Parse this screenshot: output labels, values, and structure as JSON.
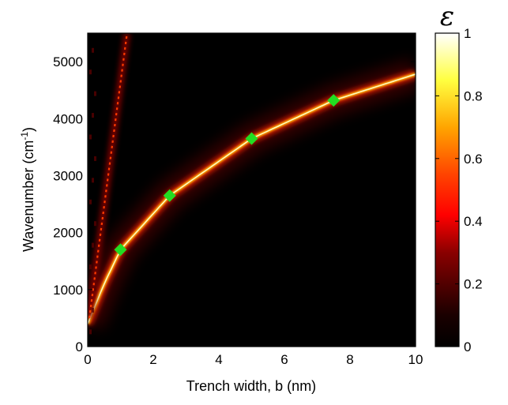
{
  "chart_data": {
    "type": "heatmap",
    "xlabel": "Trench width, b (nm)",
    "ylabel": "Wavenumber (cm",
    "ylabel_sup": "-1",
    "ylabel_tail": ")",
    "xlim": [
      0,
      10
    ],
    "ylim": [
      0,
      5500
    ],
    "x_ticks": [
      "0",
      "2",
      "4",
      "6",
      "8",
      "10"
    ],
    "y_ticks": [
      "0",
      "1000",
      "2000",
      "3000",
      "4000",
      "5000"
    ],
    "colorbar": {
      "title": "ε",
      "range": [
        0,
        1
      ],
      "ticks": [
        "0",
        "0.2",
        "0.4",
        "0.6",
        "0.8",
        "1"
      ],
      "colormap": "hot"
    },
    "main_resonance": {
      "description_points": [
        [
          0,
          400
        ],
        [
          0.5,
          1100
        ],
        [
          1,
          1700
        ],
        [
          2.5,
          2650
        ],
        [
          5,
          3650
        ],
        [
          7.5,
          4320
        ],
        [
          10,
          4780
        ]
      ]
    },
    "secondary_resonance": {
      "points": [
        [
          0.05,
          500
        ],
        [
          1.2,
          5500
        ]
      ]
    },
    "markers": {
      "color": "#22dd22",
      "shape": "diamond",
      "points": [
        {
          "x": 1.0,
          "y": 1700
        },
        {
          "x": 2.5,
          "y": 2650
        },
        {
          "x": 5.0,
          "y": 3650
        },
        {
          "x": 7.5,
          "y": 4320
        }
      ]
    },
    "background_color": "#000000"
  }
}
